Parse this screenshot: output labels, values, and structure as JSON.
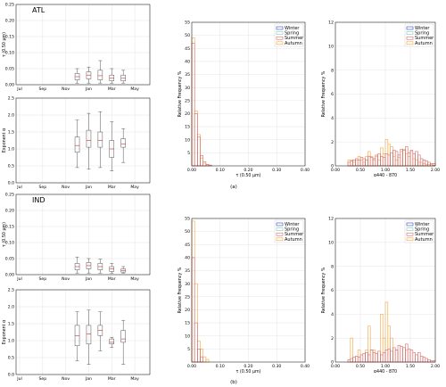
{
  "season_colors": {
    "Winter": "#3b4cc0",
    "Spring": "#7fd1b9",
    "Summer": "#d46a6a",
    "Autumn": "#f4a442"
  },
  "box_color": "#555555",
  "median_color": "#d62728",
  "captions": {
    "a": "(a)",
    "b": "(b)"
  },
  "chart_data": [
    {
      "type": "box",
      "region": "ATL",
      "title": "ATL",
      "ylabel": "τ (0.50 μm)",
      "xticks": [
        "Jul",
        "Sep",
        "Nov",
        "Jan",
        "Mar",
        "May"
      ],
      "yticks": [
        "0.00",
        "0.05",
        "0.10",
        "0.15",
        "0.20",
        "0.25"
      ],
      "ylim": [
        0,
        0.25
      ],
      "boxes": [
        {
          "x": "Dec",
          "whislo": 0.005,
          "q1": 0.015,
          "med": 0.025,
          "q3": 0.035,
          "whishi": 0.05
        },
        {
          "x": "Jan",
          "whislo": 0.005,
          "q1": 0.018,
          "med": 0.03,
          "q3": 0.04,
          "whishi": 0.055
        },
        {
          "x": "Feb",
          "whislo": 0.005,
          "q1": 0.015,
          "med": 0.028,
          "q3": 0.045,
          "whishi": 0.075
        },
        {
          "x": "Mar",
          "whislo": 0.005,
          "q1": 0.012,
          "med": 0.02,
          "q3": 0.03,
          "whishi": 0.05
        },
        {
          "x": "Apr",
          "whislo": 0.005,
          "q1": 0.012,
          "med": 0.02,
          "q3": 0.03,
          "whishi": 0.045
        }
      ]
    },
    {
      "type": "box",
      "region": "ATL",
      "ylabel": "Exponent α",
      "xticks": [
        "Jul",
        "Sep",
        "Nov",
        "Jan",
        "Mar",
        "May"
      ],
      "yticks": [
        "0.0",
        "0.5",
        "1.0",
        "1.5",
        "2.0",
        "2.5"
      ],
      "ylim": [
        0,
        2.5
      ],
      "boxes": [
        {
          "x": "Dec",
          "whislo": 0.45,
          "q1": 0.9,
          "med": 1.1,
          "q3": 1.35,
          "whishi": 1.85
        },
        {
          "x": "Jan",
          "whislo": 0.4,
          "q1": 1.05,
          "med": 1.25,
          "q3": 1.55,
          "whishi": 2.05
        },
        {
          "x": "Feb",
          "whislo": 0.45,
          "q1": 1.05,
          "med": 1.25,
          "q3": 1.5,
          "whishi": 2.1
        },
        {
          "x": "Mar",
          "whislo": 0.35,
          "q1": 0.75,
          "med": 1.0,
          "q3": 1.25,
          "whishi": 1.8
        },
        {
          "x": "Apr",
          "whislo": 0.6,
          "q1": 1.05,
          "med": 1.15,
          "q3": 1.3,
          "whishi": 1.6
        }
      ]
    },
    {
      "type": "histogram",
      "ylabel": "Relative Frequency %",
      "xlabel": "τ (0.50 μm)",
      "xticks": [
        "0.00",
        "0.10",
        "0.20",
        "0.30",
        "0.40"
      ],
      "xlim": [
        0,
        0.4
      ],
      "yticks": [
        "5",
        "10",
        "15",
        "20",
        "25",
        "30",
        "35",
        "40",
        "45",
        "50",
        "55"
      ],
      "ylim": [
        0,
        55
      ],
      "legend": [
        "Winter",
        "Spring",
        "Summer",
        "Autumn"
      ],
      "legend_position": "top-right",
      "bin_width": 0.01,
      "series": [
        {
          "name": "Autumn",
          "values": [
            49,
            21,
            12,
            3,
            1,
            0.5
          ]
        },
        {
          "name": "Summer",
          "values": [
            47,
            20,
            11,
            4,
            1.5,
            0.5,
            0.3
          ]
        }
      ]
    },
    {
      "type": "histogram",
      "ylabel": "Relative Frequency %",
      "xlabel": "α440 - 870",
      "xticks": [
        "0.00",
        "0.50",
        "1.00",
        "1.50",
        "2.00"
      ],
      "xlim": [
        0,
        2
      ],
      "yticks": [
        "0",
        "2",
        "4",
        "6",
        "8",
        "10",
        "12"
      ],
      "ylim": [
        0,
        12
      ],
      "legend": [
        "Winter",
        "Spring",
        "Summer",
        "Autumn"
      ],
      "legend_position": "top-right",
      "bin_start": 0.25,
      "bin_width": 0.05,
      "series": [
        {
          "name": "Autumn",
          "values": [
            0.5,
            0.5,
            0.3,
            0.5,
            0.8,
            0.5,
            0.3,
            0.8,
            1.2,
            0.8,
            0.5,
            0.8,
            0.5,
            1.5,
            1.0,
            2.2,
            1.8,
            1.6,
            0.8,
            0.5,
            0.7,
            1.2,
            1.4,
            1.0,
            0.8,
            1.2,
            0.6,
            0.5,
            0.3,
            0.3,
            0.2,
            0.1,
            0.1,
            0.1,
            0.05
          ]
        },
        {
          "name": "Summer",
          "values": [
            0.3,
            0.4,
            0.5,
            0.6,
            0.5,
            0.7,
            0.6,
            0.5,
            0.8,
            0.7,
            0.6,
            0.9,
            1.0,
            0.8,
            0.7,
            1.0,
            0.9,
            1.1,
            1.3,
            1.2,
            0.9,
            1.4,
            1.3,
            1.6,
            1.1,
            1.3,
            1.0,
            1.2,
            0.9,
            0.6,
            0.5,
            0.4,
            0.3,
            0.2,
            0.2
          ]
        }
      ]
    },
    {
      "type": "box",
      "region": "IND",
      "title": "IND",
      "ylabel": "τ (0.50 μm)",
      "xticks": [
        "Jul",
        "Sep",
        "Nov",
        "Jan",
        "Mar",
        "May"
      ],
      "yticks": [
        "0.00",
        "0.05",
        "0.10",
        "0.15",
        "0.20",
        "0.25"
      ],
      "ylim": [
        0,
        0.25
      ],
      "boxes": [
        {
          "x": "Dec",
          "whislo": 0.005,
          "q1": 0.015,
          "med": 0.025,
          "q3": 0.035,
          "whishi": 0.055
        },
        {
          "x": "Jan",
          "whislo": 0.005,
          "q1": 0.018,
          "med": 0.028,
          "q3": 0.038,
          "whishi": 0.05
        },
        {
          "x": "Feb",
          "whislo": 0.005,
          "q1": 0.015,
          "med": 0.025,
          "q3": 0.035,
          "whishi": 0.048
        },
        {
          "x": "Mar",
          "whislo": 0.005,
          "q1": 0.01,
          "med": 0.018,
          "q3": 0.025,
          "whishi": 0.035
        },
        {
          "x": "Apr",
          "whislo": 0.005,
          "q1": 0.008,
          "med": 0.012,
          "q3": 0.018,
          "whishi": 0.025
        }
      ]
    },
    {
      "type": "box",
      "region": "IND",
      "ylabel": "Exponent α",
      "xticks": [
        "Jul",
        "Sep",
        "Nov",
        "Jan",
        "Mar",
        "May"
      ],
      "yticks": [
        "0.0",
        "0.5",
        "1.0",
        "1.5",
        "2.0",
        "2.5"
      ],
      "ylim": [
        0,
        2.5
      ],
      "boxes": [
        {
          "x": "Dec",
          "whislo": 0.4,
          "q1": 0.85,
          "med": 1.15,
          "q3": 1.45,
          "whishi": 1.85
        },
        {
          "x": "Jan",
          "whislo": 0.3,
          "q1": 0.9,
          "med": 1.2,
          "q3": 1.45,
          "whishi": 1.9
        },
        {
          "x": "Feb",
          "whislo": 0.7,
          "q1": 1.15,
          "med": 1.3,
          "q3": 1.45,
          "whishi": 1.85
        },
        {
          "x": "Mar",
          "whislo": 0.8,
          "q1": 0.9,
          "med": 0.95,
          "q3": 1.05,
          "whishi": 1.1
        },
        {
          "x": "Apr",
          "whislo": 0.3,
          "q1": 0.95,
          "med": 1.05,
          "q3": 1.3,
          "whishi": 1.6
        }
      ]
    },
    {
      "type": "histogram",
      "ylabel": "Relative Frequency %",
      "xlabel": "τ (0.50 μm)",
      "xticks": [
        "0.00",
        "0.10",
        "0.20",
        "0.30",
        "0.40"
      ],
      "xlim": [
        0,
        0.4
      ],
      "yticks": [
        "5",
        "10",
        "15",
        "20",
        "25",
        "30",
        "35",
        "40",
        "45",
        "50",
        "55"
      ],
      "ylim": [
        0,
        55
      ],
      "legend": [
        "Winter",
        "Spring",
        "Summer",
        "Autumn"
      ],
      "legend_position": "top-right",
      "bin_width": 0.01,
      "series": [
        {
          "name": "Autumn",
          "values": [
            54,
            30,
            8,
            5,
            2,
            1
          ]
        },
        {
          "name": "Summer",
          "values": [
            40,
            15,
            5,
            2
          ]
        }
      ]
    },
    {
      "type": "histogram",
      "ylabel": "Relative Frequency %",
      "xlabel": "α440 - 870",
      "xticks": [
        "0.00",
        "0.50",
        "1.00",
        "1.50",
        "2.00"
      ],
      "xlim": [
        0,
        2
      ],
      "yticks": [
        "0",
        "2",
        "4",
        "6",
        "8",
        "10",
        "12"
      ],
      "ylim": [
        0,
        12
      ],
      "legend": [
        "Winter",
        "Spring",
        "Summer",
        "Autumn"
      ],
      "legend_position": "top-right",
      "bin_start": 0.25,
      "bin_width": 0.05,
      "series": [
        {
          "name": "Autumn",
          "values": [
            0,
            2,
            0,
            0,
            1,
            0,
            0,
            1,
            3,
            1,
            1,
            0,
            0,
            4,
            2,
            5,
            3,
            2,
            0,
            1,
            0,
            0,
            0,
            1,
            0,
            0,
            0,
            0,
            0,
            0,
            0,
            0,
            0,
            0,
            0
          ]
        },
        {
          "name": "Summer",
          "values": [
            0.2,
            0.3,
            0.4,
            0.5,
            0.4,
            0.6,
            0.7,
            0.8,
            0.6,
            1.0,
            0.8,
            0.7,
            0.9,
            0.6,
            0.8,
            1.0,
            1.1,
            0.9,
            1.2,
            1.0,
            1.4,
            1.3,
            1.2,
            1.5,
            1.1,
            1.0,
            0.8,
            0.6,
            0.8,
            0.5,
            0.4,
            0.3,
            0.2,
            0.1,
            0.1
          ]
        }
      ]
    }
  ]
}
